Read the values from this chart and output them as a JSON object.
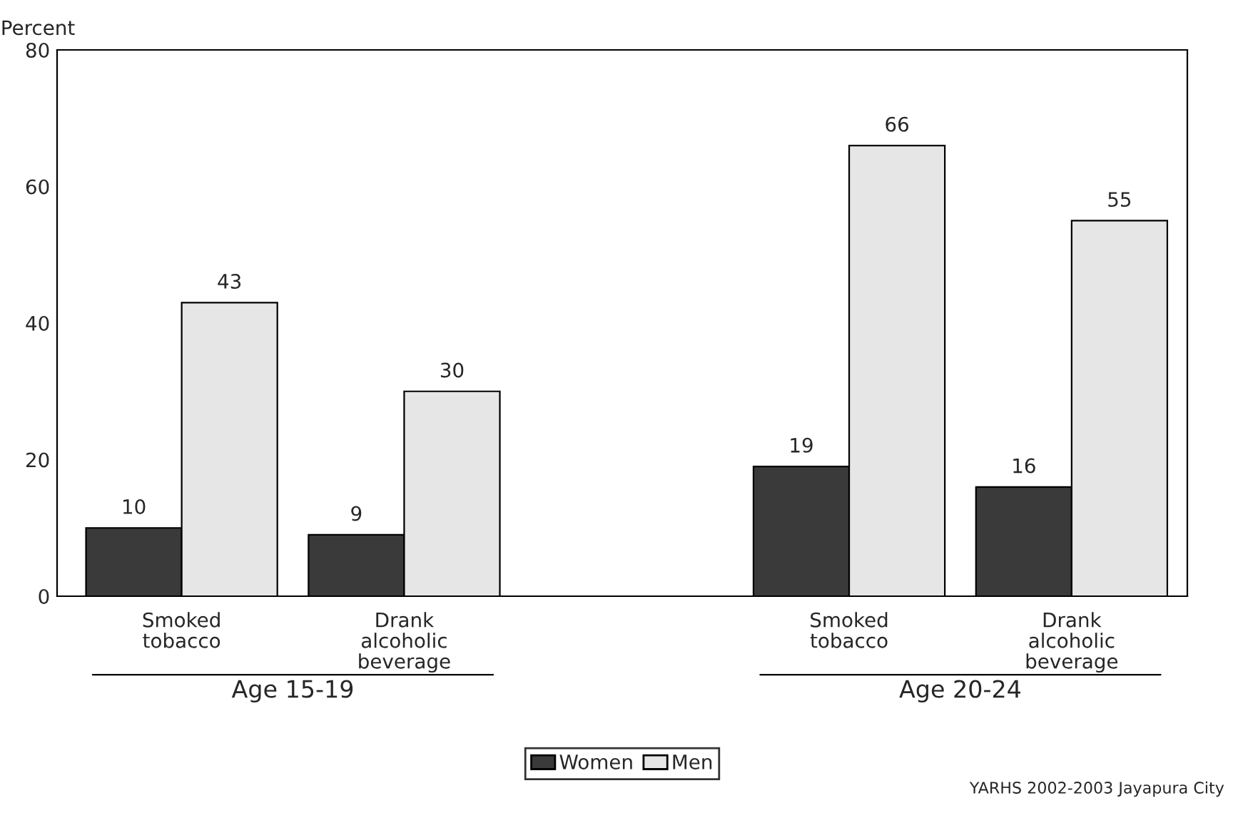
{
  "chart_data": {
    "type": "bar",
    "ylabel": "Percent",
    "categories": [
      "Smoked\ntobacco",
      "Drank\nalcoholic\nbeverage",
      null,
      "Smoked\ntobacco",
      "Drank\nalcoholic\nbeverage"
    ],
    "series": [
      {
        "name": "Women",
        "color": "#3a3a3a",
        "values": [
          10,
          9,
          null,
          19,
          16
        ]
      },
      {
        "name": "Men",
        "color": "#e6e6e6",
        "values": [
          43,
          30,
          null,
          66,
          55
        ]
      }
    ],
    "ylim": [
      0,
      80
    ],
    "yticks": [
      0,
      20,
      40,
      60,
      80
    ],
    "data_labels": true,
    "grid": false,
    "legend": "bottom",
    "annotations": [
      "Age 15-19",
      "Age 20-24",
      "YARHS 2002-2003 Jayapura City"
    ]
  }
}
